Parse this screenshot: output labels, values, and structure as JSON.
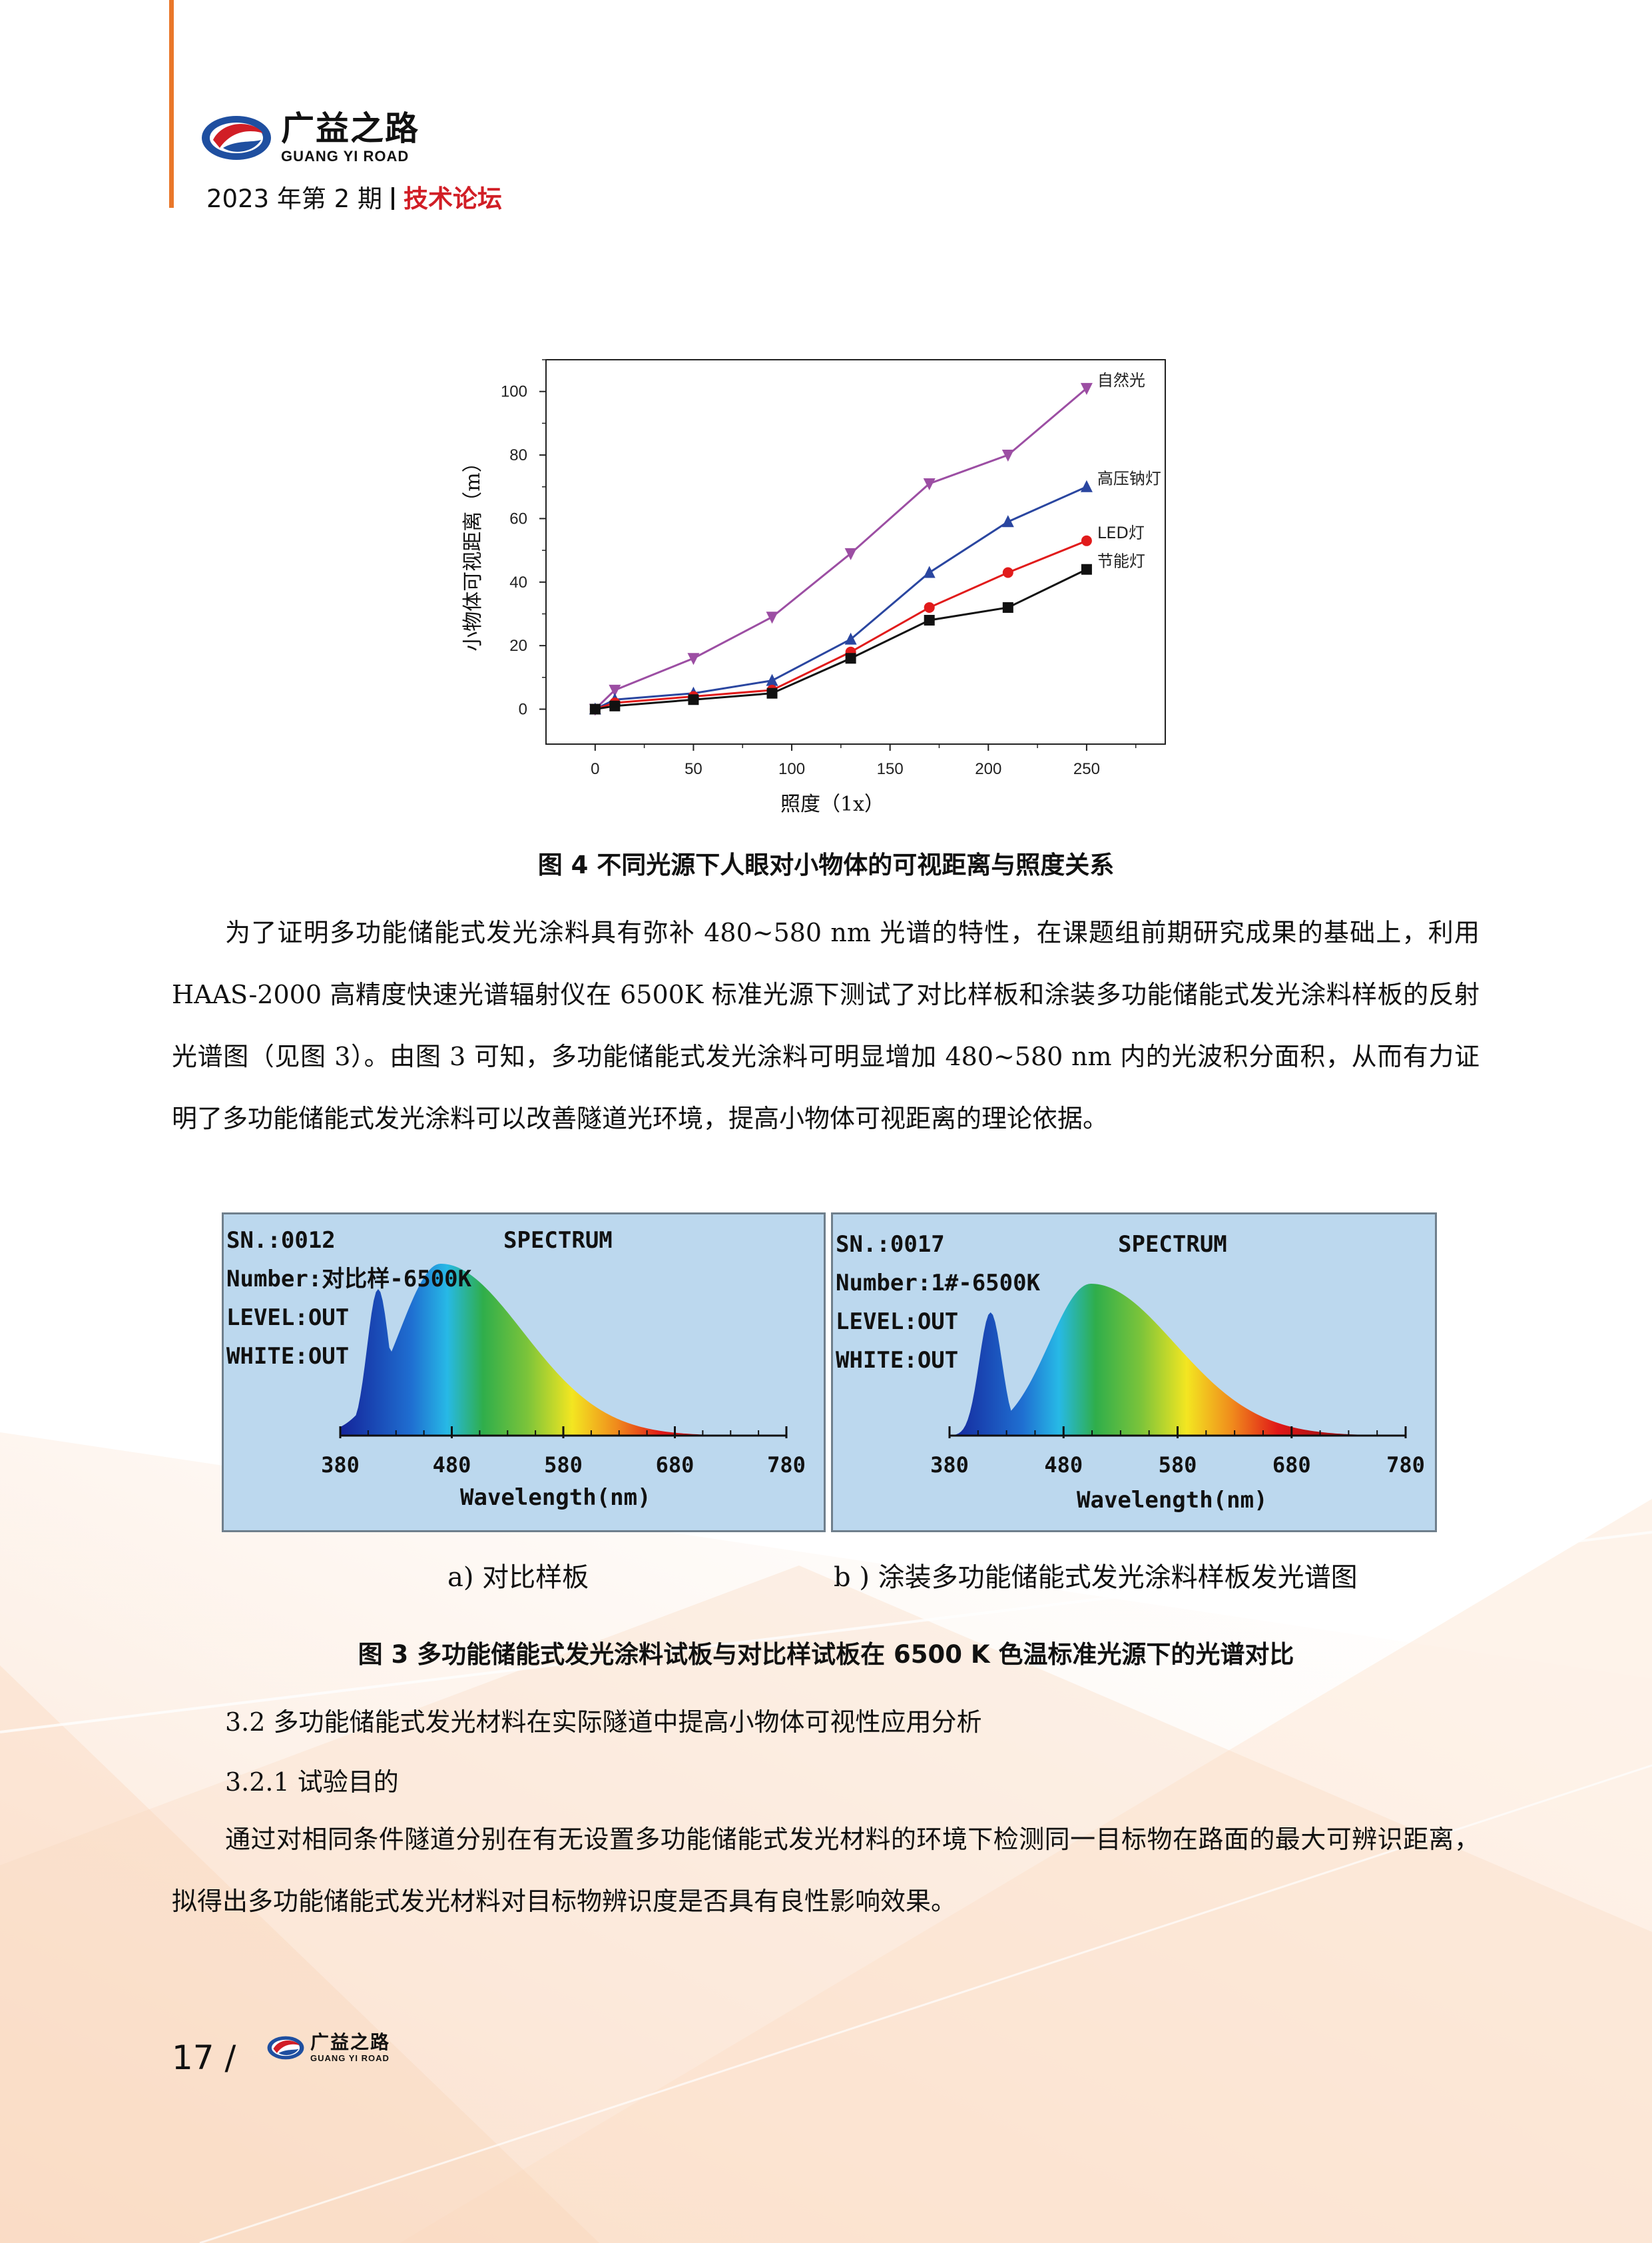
{
  "header": {
    "logo_cn": "广益之路",
    "logo_en": "GUANG YI ROAD",
    "issue": "2023 年第 2 期",
    "section": "技术论坛"
  },
  "figure4": {
    "caption": "图 4  不同光源下人眼对小物体的可视距离与照度关系"
  },
  "chart_data": {
    "type": "line",
    "xlabel": "照度（1x）",
    "ylabel": "小物体可视距离（m）",
    "xlim": [
      -25,
      290
    ],
    "ylim": [
      -11,
      110
    ],
    "xticks": [
      0,
      50,
      100,
      150,
      200,
      250
    ],
    "yticks": [
      0,
      20,
      40,
      60,
      80,
      100
    ],
    "x": [
      0,
      10,
      50,
      90,
      130,
      170,
      210,
      250
    ],
    "series": [
      {
        "name": "自然光",
        "color": "#9c4ea3",
        "marker": "triangle-down",
        "values": [
          0,
          6,
          16,
          29,
          49,
          71,
          80,
          101
        ]
      },
      {
        "name": "高压钠灯",
        "color": "#2a46a0",
        "marker": "triangle-up",
        "values": [
          0,
          3,
          5,
          9,
          22,
          43,
          59,
          70
        ]
      },
      {
        "name": "LED灯",
        "color": "#e11b1b",
        "marker": "circle",
        "values": [
          0,
          2,
          4,
          6,
          18,
          32,
          43,
          53
        ]
      },
      {
        "name": "节能灯",
        "color": "#111111",
        "marker": "square",
        "values": [
          0,
          1,
          3,
          5,
          16,
          28,
          32,
          44
        ]
      }
    ]
  },
  "paragraph1": "为了证明多功能储能式发光涂料具有弥补 480~580 nm 光谱的特性，在课题组前期研究成果的基础上，利用 HAAS-2000 高精度快速光谱辐射仪在 6500K 标准光源下测试了对比样板和涂装多功能储能式发光涂料样板的反射光谱图（见图 3）。由图 3 可知，多功能储能式发光涂料可明显增加 480~580 nm 内的光波积分面积，从而有力证明了多功能储能式发光涂料可以改善隧道光环境，提高小物体可视距离的理论依据。",
  "figure3": {
    "caption": "图 3  多功能储能式发光涂料试板与对比样试板在 6500 K 色温标准光源下的光谱对比",
    "panel_a": {
      "sn": "SN.:0012",
      "number": "Number:对比样-6500K",
      "level": "LEVEL:OUT",
      "white": "WHITE:OUT",
      "title": "SPECTRUM",
      "xticks": [
        "380",
        "480",
        "580",
        "680",
        "780"
      ],
      "xlabel": "Wavelength(nm)",
      "subcaption": "a) 对比样板"
    },
    "panel_b": {
      "sn": "SN.:0017",
      "number": "Number:1#-6500K",
      "level": "LEVEL:OUT",
      "white": "WHITE:OUT",
      "title": "SPECTRUM",
      "xticks": [
        "380",
        "480",
        "580",
        "680",
        "780"
      ],
      "xlabel": "Wavelength(nm)",
      "subcaption": "b ) 涂装多功能储能式发光涂料样板发光谱图"
    }
  },
  "section_heading": "3.2 多功能储能式发光材料在实际隧道中提高小物体可视性应用分析",
  "subsection_heading": "3.2.1 试验目的",
  "paragraph2": "通过对相同条件隧道分别在有无设置多功能储能式发光材料的环境下检测同一目标物在路面的最大可辨识距离，拟得出多功能储能式发光材料对目标物辨识度是否具有良性影响效果。",
  "footer": {
    "page_number": "17 /",
    "logo_cn": "广益之路",
    "logo_en": "GUANG YI ROAD"
  },
  "colors": {
    "accent_orange": "#e9772a",
    "accent_red": "#d11e26",
    "brand_blue": "#1f4fa0",
    "spectrum_bg": "#bcd8ee"
  }
}
